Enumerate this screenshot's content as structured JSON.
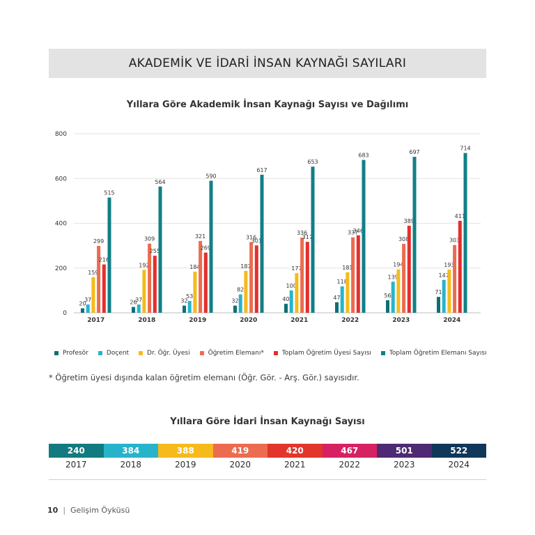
{
  "header": {
    "title": "AKADEMİK VE İDARİ İNSAN KAYNAĞI SAYILARI"
  },
  "chart_data": {
    "type": "bar",
    "title": "Yıllara Göre Akademik İnsan Kaynağı Sayısı ve Dağılımı",
    "categories": [
      "2017",
      "2018",
      "2019",
      "2020",
      "2021",
      "2022",
      "2023",
      "2024"
    ],
    "ylim": [
      0,
      800
    ],
    "yticks": [
      0,
      200,
      400,
      600,
      800
    ],
    "grid": true,
    "legend_position": "bottom",
    "series": [
      {
        "name": "Profesör",
        "color": "#0e6f73",
        "values": [
          20,
          26,
          32,
          32,
          40,
          47,
          56,
          71
        ]
      },
      {
        "name": "Doçent",
        "color": "#27b4cb",
        "values": [
          37,
          37,
          53,
          82,
          100,
          118,
          139,
          147
        ]
      },
      {
        "name": "Dr. Öğr. Üyesi",
        "color": "#f5bb1c",
        "values": [
          159,
          192,
          184,
          187,
          177,
          181,
          194,
          193
        ]
      },
      {
        "name": "Öğretim Elemanı*",
        "color": "#ec6c4f",
        "values": [
          299,
          309,
          321,
          316,
          336,
          337,
          308,
          303
        ]
      },
      {
        "name": "Toplam Öğretim Üyesi Sayısı",
        "color": "#e2302e",
        "values": [
          216,
          255,
          269,
          301,
          317,
          346,
          389,
          411
        ]
      },
      {
        "name": "Toplam Öğretim Elemanı Sayısı",
        "color": "#117f86",
        "values": [
          515,
          564,
          590,
          617,
          653,
          683,
          697,
          714
        ]
      }
    ]
  },
  "footnote": "* Öğretim üyesi dışında kalan öğretim elemanı (Öğr. Gör. - Arş. Gör.) sayısıdır.",
  "admin": {
    "title": "Yıllara Göre İdari İnsan Kaynağı Sayısı",
    "items": [
      {
        "year": "2017",
        "value": "240",
        "color": "#137a80"
      },
      {
        "year": "2018",
        "value": "384",
        "color": "#27b4cb"
      },
      {
        "year": "2019",
        "value": "388",
        "color": "#f5bb1c"
      },
      {
        "year": "2020",
        "value": "419",
        "color": "#ec6c4f"
      },
      {
        "year": "2021",
        "value": "420",
        "color": "#e2352b"
      },
      {
        "year": "2022",
        "value": "467",
        "color": "#d62263"
      },
      {
        "year": "2023",
        "value": "501",
        "color": "#4e2a74"
      },
      {
        "year": "2024",
        "value": "522",
        "color": "#10365a"
      }
    ]
  },
  "footer": {
    "page_number": "10",
    "separator": "|",
    "section": "Gelişim Öyküsü"
  }
}
